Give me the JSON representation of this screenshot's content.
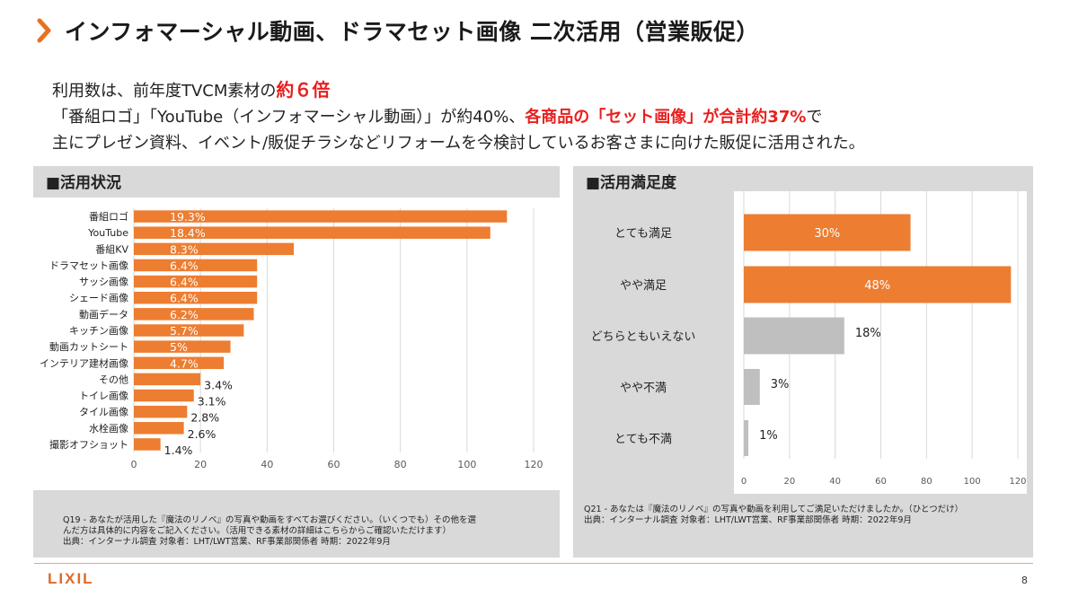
{
  "header": {
    "title": "インフォマーシャル動画、ドラマセット画像 二次活用（営業販促）",
    "accent_color": "#e8701e"
  },
  "summary": {
    "line1_pre": "利用数は、前年度TVCM素材の",
    "line1_red": "約６倍",
    "line2_pre": "「番組ロゴ」「YouTube（インフォマーシャル動画）」が約40%、",
    "line2_red": "各商品の「セット画像」が合計約37%",
    "line2_post": "で",
    "line3": "主にプレゼン資料、イベント/販促チラシなどリフォームを今検討しているお客さまに向けた販促に活用された。"
  },
  "left_panel": {
    "heading": "■活用状況",
    "footnote": [
      "Q19 - あなたが活用した『魔法のリノベ』の写真や動画をすべてお選びください。（いくつでも）その他を選",
      "んだ方は具体的に内容をご記入ください。（活用できる素材の詳細はこちらからご確認いただけます）",
      "出典：インターナル調査 対象者：LHT/LWT営業、RF事業部関係者 時期：2022年9月"
    ]
  },
  "right_panel": {
    "heading": "■活用満足度",
    "footnote": [
      "Q21 - あなたは『魔法のリノベ』の写真や動画を利用してご満足いただけましたか。（ひとつだけ）",
      "出典：インターナル調査 対象者：LHT/LWT営業、RF事業部関係者 時期：2022年9月"
    ]
  },
  "chart_data": [
    {
      "type": "bar",
      "orientation": "horizontal",
      "categories": [
        "番組ロゴ",
        "YouTube",
        "番組KV",
        "ドラマセット画像",
        "サッシ画像",
        "シェード画像",
        "動画データ",
        "キッチン画像",
        "動画カットシート",
        "インテリア建材画像",
        "その他",
        "トイレ画像",
        "タイル画像",
        "水栓画像",
        "撮影オフショット"
      ],
      "values": [
        112,
        107,
        48,
        37,
        37,
        37,
        36,
        33,
        29,
        27,
        20,
        18,
        16,
        15,
        8
      ],
      "data_labels": [
        "19.3%",
        "18.4%",
        "8.3%",
        "6.4%",
        "6.4%",
        "6.4%",
        "6.2%",
        "5.7%",
        "5%",
        "4.7%",
        "3.4%",
        "3.1%",
        "2.8%",
        "2.6%",
        "1.4%"
      ],
      "xlim": [
        0,
        120
      ],
      "xticks": [
        "0",
        "20",
        "40",
        "60",
        "80",
        "100",
        "120"
      ],
      "grid": true,
      "bar_color": "#ed7d31"
    },
    {
      "type": "bar",
      "orientation": "horizontal",
      "categories": [
        "とても満足",
        "やや満足",
        "どちらともいえない",
        "やや不満",
        "とても不満"
      ],
      "values": [
        73,
        117,
        44,
        7,
        2
      ],
      "data_labels": [
        "30%",
        "48%",
        "18%",
        "3%",
        "1%"
      ],
      "xlim": [
        0,
        120
      ],
      "xticks": [
        "0",
        "20",
        "40",
        "60",
        "80",
        "100",
        "120"
      ],
      "grid": true,
      "bar_colors": [
        "#ed7d31",
        "#ed7d31",
        "#bfbfbf",
        "#bfbfbf",
        "#bfbfbf"
      ]
    }
  ],
  "footer": {
    "logo": "LIXIL",
    "page_number": "8"
  }
}
